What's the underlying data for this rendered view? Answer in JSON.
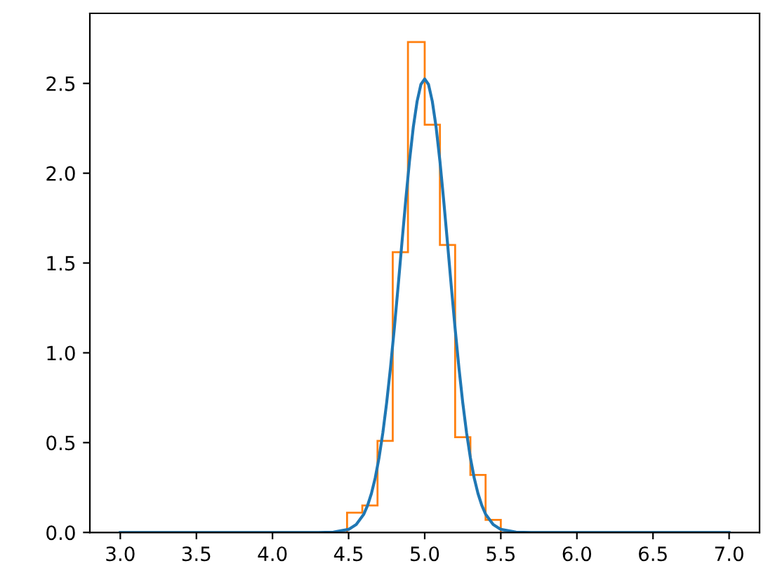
{
  "chart_data": {
    "type": "histogram",
    "bins": [
      4.49,
      4.59,
      4.69,
      4.79,
      4.89,
      5.0,
      5.1,
      5.2,
      5.3,
      5.4,
      5.5
    ],
    "values": [
      0.11,
      0.15,
      0.51,
      1.56,
      2.73,
      2.27,
      1.6,
      0.53,
      0.32,
      0.07
    ],
    "color": "#ff7f0e",
    "series": [
      {
        "type": "line",
        "color": "#1f77b4",
        "x": [
          3.0,
          4.0,
          4.3,
          4.4,
          4.5,
          4.55,
          4.6,
          4.625,
          4.65,
          4.675,
          4.7,
          4.725,
          4.75,
          4.775,
          4.8,
          4.825,
          4.85,
          4.875,
          4.9,
          4.925,
          4.95,
          4.975,
          5.0,
          5.025,
          5.05,
          5.075,
          5.1,
          5.125,
          5.15,
          5.175,
          5.2,
          5.225,
          5.25,
          5.275,
          5.3,
          5.325,
          5.35,
          5.375,
          5.4,
          5.45,
          5.5,
          5.6,
          5.7,
          6.0,
          7.0
        ],
        "values": [
          0,
          0,
          0,
          0.002,
          0.017,
          0.044,
          0.102,
          0.151,
          0.217,
          0.304,
          0.416,
          0.555,
          0.722,
          0.916,
          1.134,
          1.367,
          1.609,
          1.846,
          2.067,
          2.256,
          2.4,
          2.494,
          2.525,
          2.494,
          2.4,
          2.256,
          2.067,
          1.846,
          1.609,
          1.367,
          1.134,
          0.916,
          0.722,
          0.555,
          0.416,
          0.304,
          0.217,
          0.151,
          0.102,
          0.044,
          0.017,
          0.002,
          0,
          0,
          0
        ]
      }
    ],
    "xlim": [
      2.8,
      7.2
    ],
    "ylim": [
      0,
      2.89
    ],
    "xticks": [
      {
        "value": 3,
        "label": "3.0"
      },
      {
        "value": 3.5,
        "label": "3.5"
      },
      {
        "value": 4,
        "label": "4.0"
      },
      {
        "value": 4.5,
        "label": "4.5"
      },
      {
        "value": 5,
        "label": "5.0"
      },
      {
        "value": 5.5,
        "label": "5.5"
      },
      {
        "value": 6,
        "label": "6.0"
      },
      {
        "value": 6.5,
        "label": "6.5"
      },
      {
        "value": 7,
        "label": "7.0"
      }
    ],
    "yticks": [
      {
        "value": 0,
        "label": "0.0"
      },
      {
        "value": 0.5,
        "label": "0.5"
      },
      {
        "value": 1,
        "label": "1.0"
      },
      {
        "value": 1.5,
        "label": "1.5"
      },
      {
        "value": 2,
        "label": "2.0"
      },
      {
        "value": 2.5,
        "label": "2.5"
      }
    ],
    "grid": false
  }
}
